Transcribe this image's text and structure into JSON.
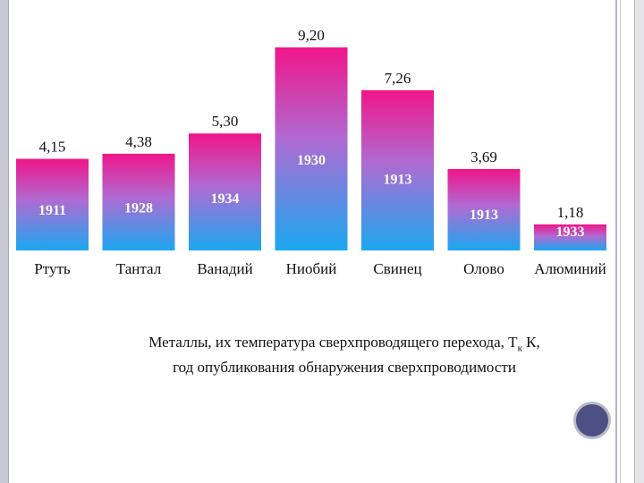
{
  "chart_data": {
    "type": "bar",
    "categories": [
      "Ртуть",
      "Тантал",
      "Ванадий",
      "Ниобий",
      "Свинец",
      "Олово",
      "Алюминий"
    ],
    "values": [
      "4,15",
      "4,38",
      "5,30",
      "9,20",
      "7,26",
      "3,69",
      "1,18"
    ],
    "values_numeric": [
      4.15,
      4.38,
      5.3,
      9.2,
      7.26,
      3.69,
      1.18
    ],
    "years": [
      "1911",
      "1928",
      "1934",
      "1930",
      "1913",
      "1913",
      "1933"
    ],
    "ylim": [
      0,
      9.2
    ],
    "title": "",
    "xlabel": "",
    "ylabel": "",
    "grid": false,
    "colors": {
      "top": "#f0158a",
      "mid": "#b06ad2",
      "bottom": "#1aa8f0",
      "text": "#111111",
      "year_text": "#ffffff"
    }
  },
  "caption": {
    "line1_before": "Металлы, их температура сверхпроводящего перехода, T",
    "line1_sub": "к",
    "line1_after": " К,",
    "line2": "год опубликования обнаружения сверхпроводимости"
  },
  "navigation": {
    "icon": "circle-nav-icon"
  }
}
